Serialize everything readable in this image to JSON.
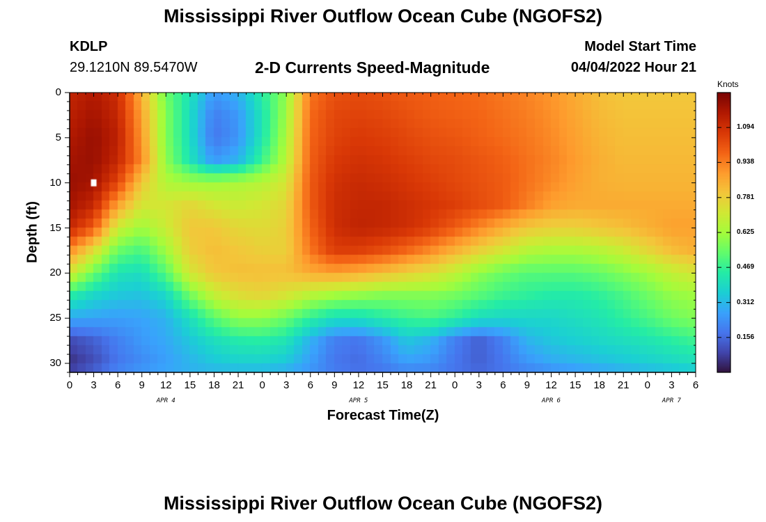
{
  "header": {
    "title": "Mississippi River Outflow Ocean Cube (NGOFS2)",
    "station": "KDLP",
    "coords": "29.1210N  89.5470W",
    "subtitle": "2-D Currents Speed-Magnitude",
    "model_label": "Model Start Time",
    "model_time": "04/04/2022 Hour 21"
  },
  "footer": {
    "title": "Mississippi River Outflow Ocean Cube (NGOFS2)"
  },
  "chart_data": {
    "type": "heatmap",
    "title": "2-D Currents Speed-Magnitude",
    "xlabel": "Forecast Time(Z)",
    "ylabel": "Depth (ft)",
    "x_range_hours": [
      0,
      78
    ],
    "x_tick_labels": [
      "0",
      "3",
      "6",
      "9",
      "12",
      "15",
      "18",
      "21",
      "0",
      "3",
      "6",
      "9",
      "12",
      "15",
      "18",
      "21",
      "0",
      "3",
      "6",
      "9",
      "12",
      "15",
      "18",
      "21",
      "0",
      "3",
      "6"
    ],
    "date_labels": [
      {
        "label": "APR 4",
        "hour": 12
      },
      {
        "label": "APR 5",
        "hour": 36
      },
      {
        "label": "APR 6",
        "hour": 60
      },
      {
        "label": "APR 7",
        "hour": 75
      }
    ],
    "y_range_ft": [
      0,
      31
    ],
    "y_ticks": [
      0,
      5,
      10,
      15,
      20,
      25,
      30
    ],
    "colorbar": {
      "unit": "Knots",
      "range": [
        0.0,
        1.25
      ],
      "ticks": [
        0.156,
        0.312,
        0.469,
        0.625,
        0.781,
        0.938,
        1.094
      ],
      "colormap": [
        "#30123b",
        "#4145ab",
        "#4675ed",
        "#39a2fc",
        "#1bcfd4",
        "#24eca6",
        "#61fc6c",
        "#a4fc3b",
        "#d1e834",
        "#f3c63a",
        "#fe9b2d",
        "#f36315",
        "#d93806",
        "#b11901",
        "#7a0403"
      ]
    },
    "grid_x": [
      0,
      3,
      6,
      9,
      12,
      15,
      18,
      21,
      24,
      27,
      30,
      33,
      36,
      39,
      42,
      45,
      48,
      51,
      54,
      57,
      60,
      63,
      66,
      69,
      72,
      75,
      78
    ],
    "grid_y": [
      0,
      2.5,
      5,
      7.5,
      10,
      12.5,
      15,
      17.5,
      20,
      22.5,
      25,
      27.5,
      30,
      31
    ],
    "values": [
      [
        1.12,
        1.16,
        1.1,
        0.85,
        0.55,
        0.42,
        0.25,
        0.3,
        0.45,
        0.6,
        0.95,
        1.02,
        1.03,
        1.02,
        1.0,
        0.99,
        0.98,
        0.97,
        0.95,
        0.93,
        0.9,
        0.86,
        0.82,
        0.8,
        0.8,
        0.8,
        0.8
      ],
      [
        1.14,
        1.18,
        1.12,
        0.88,
        0.58,
        0.4,
        0.2,
        0.25,
        0.42,
        0.62,
        0.97,
        1.04,
        1.05,
        1.04,
        1.02,
        1.0,
        0.99,
        0.98,
        0.96,
        0.94,
        0.91,
        0.87,
        0.83,
        0.81,
        0.81,
        0.81,
        0.81
      ],
      [
        1.16,
        1.2,
        1.14,
        0.9,
        0.58,
        0.4,
        0.18,
        0.24,
        0.42,
        0.64,
        0.98,
        1.05,
        1.07,
        1.06,
        1.04,
        1.02,
        1.01,
        0.99,
        0.97,
        0.95,
        0.92,
        0.88,
        0.84,
        0.82,
        0.82,
        0.82,
        0.82
      ],
      [
        1.18,
        1.2,
        1.12,
        0.92,
        0.6,
        0.42,
        0.25,
        0.3,
        0.48,
        0.66,
        0.99,
        1.07,
        1.09,
        1.08,
        1.06,
        1.04,
        1.03,
        1.01,
        0.99,
        0.96,
        0.93,
        0.89,
        0.85,
        0.83,
        0.83,
        0.83,
        0.83
      ],
      [
        1.2,
        1.18,
        1.05,
        0.8,
        0.65,
        0.62,
        0.62,
        0.64,
        0.66,
        0.72,
        1.0,
        1.09,
        1.11,
        1.1,
        1.08,
        1.06,
        1.04,
        1.02,
        1.0,
        0.96,
        0.92,
        0.88,
        0.85,
        0.84,
        0.84,
        0.84,
        0.84
      ],
      [
        1.18,
        1.12,
        0.88,
        0.72,
        0.72,
        0.76,
        0.72,
        0.7,
        0.72,
        0.76,
        1.0,
        1.1,
        1.12,
        1.12,
        1.1,
        1.08,
        1.06,
        1.03,
        1.0,
        0.94,
        0.88,
        0.86,
        0.86,
        0.86,
        0.86,
        0.86,
        0.86
      ],
      [
        1.12,
        1.0,
        0.7,
        0.62,
        0.7,
        0.8,
        0.8,
        0.76,
        0.75,
        0.78,
        0.98,
        1.1,
        1.13,
        1.12,
        1.1,
        1.06,
        1.0,
        0.93,
        0.86,
        0.8,
        0.78,
        0.78,
        0.8,
        0.82,
        0.85,
        0.88,
        0.88
      ],
      [
        0.92,
        0.75,
        0.55,
        0.5,
        0.62,
        0.78,
        0.82,
        0.8,
        0.78,
        0.78,
        0.95,
        1.06,
        1.06,
        1.03,
        0.98,
        0.92,
        0.85,
        0.78,
        0.72,
        0.66,
        0.64,
        0.64,
        0.66,
        0.7,
        0.76,
        0.82,
        0.85
      ],
      [
        0.72,
        0.55,
        0.42,
        0.4,
        0.52,
        0.72,
        0.8,
        0.82,
        0.82,
        0.82,
        0.86,
        0.88,
        0.86,
        0.82,
        0.78,
        0.74,
        0.68,
        0.6,
        0.55,
        0.52,
        0.52,
        0.52,
        0.54,
        0.58,
        0.62,
        0.68,
        0.72
      ],
      [
        0.45,
        0.38,
        0.34,
        0.33,
        0.38,
        0.55,
        0.68,
        0.74,
        0.76,
        0.72,
        0.66,
        0.62,
        0.6,
        0.58,
        0.58,
        0.58,
        0.56,
        0.52,
        0.48,
        0.46,
        0.44,
        0.44,
        0.46,
        0.5,
        0.55,
        0.6,
        0.62
      ],
      [
        0.28,
        0.27,
        0.26,
        0.27,
        0.3,
        0.4,
        0.52,
        0.6,
        0.6,
        0.55,
        0.46,
        0.4,
        0.4,
        0.44,
        0.48,
        0.5,
        0.46,
        0.4,
        0.38,
        0.38,
        0.38,
        0.4,
        0.42,
        0.46,
        0.5,
        0.55,
        0.58
      ],
      [
        0.1,
        0.14,
        0.2,
        0.25,
        0.28,
        0.34,
        0.4,
        0.44,
        0.45,
        0.42,
        0.3,
        0.2,
        0.18,
        0.24,
        0.34,
        0.3,
        0.2,
        0.14,
        0.2,
        0.3,
        0.34,
        0.36,
        0.38,
        0.4,
        0.42,
        0.45,
        0.48
      ],
      [
        0.05,
        0.1,
        0.18,
        0.22,
        0.26,
        0.3,
        0.34,
        0.36,
        0.36,
        0.34,
        0.26,
        0.18,
        0.16,
        0.2,
        0.26,
        0.24,
        0.18,
        0.14,
        0.18,
        0.24,
        0.28,
        0.3,
        0.32,
        0.34,
        0.36,
        0.38,
        0.4
      ],
      [
        0.1,
        0.16,
        0.22,
        0.26,
        0.28,
        0.3,
        0.3,
        0.3,
        0.3,
        0.28,
        0.24,
        0.2,
        0.18,
        0.18,
        0.2,
        0.2,
        0.18,
        0.16,
        0.18,
        0.2,
        0.22,
        0.24,
        0.26,
        0.28,
        0.3,
        0.32,
        0.34
      ]
    ],
    "markers": [
      {
        "hour": 3,
        "depth": 10,
        "label": "white marker"
      }
    ]
  }
}
